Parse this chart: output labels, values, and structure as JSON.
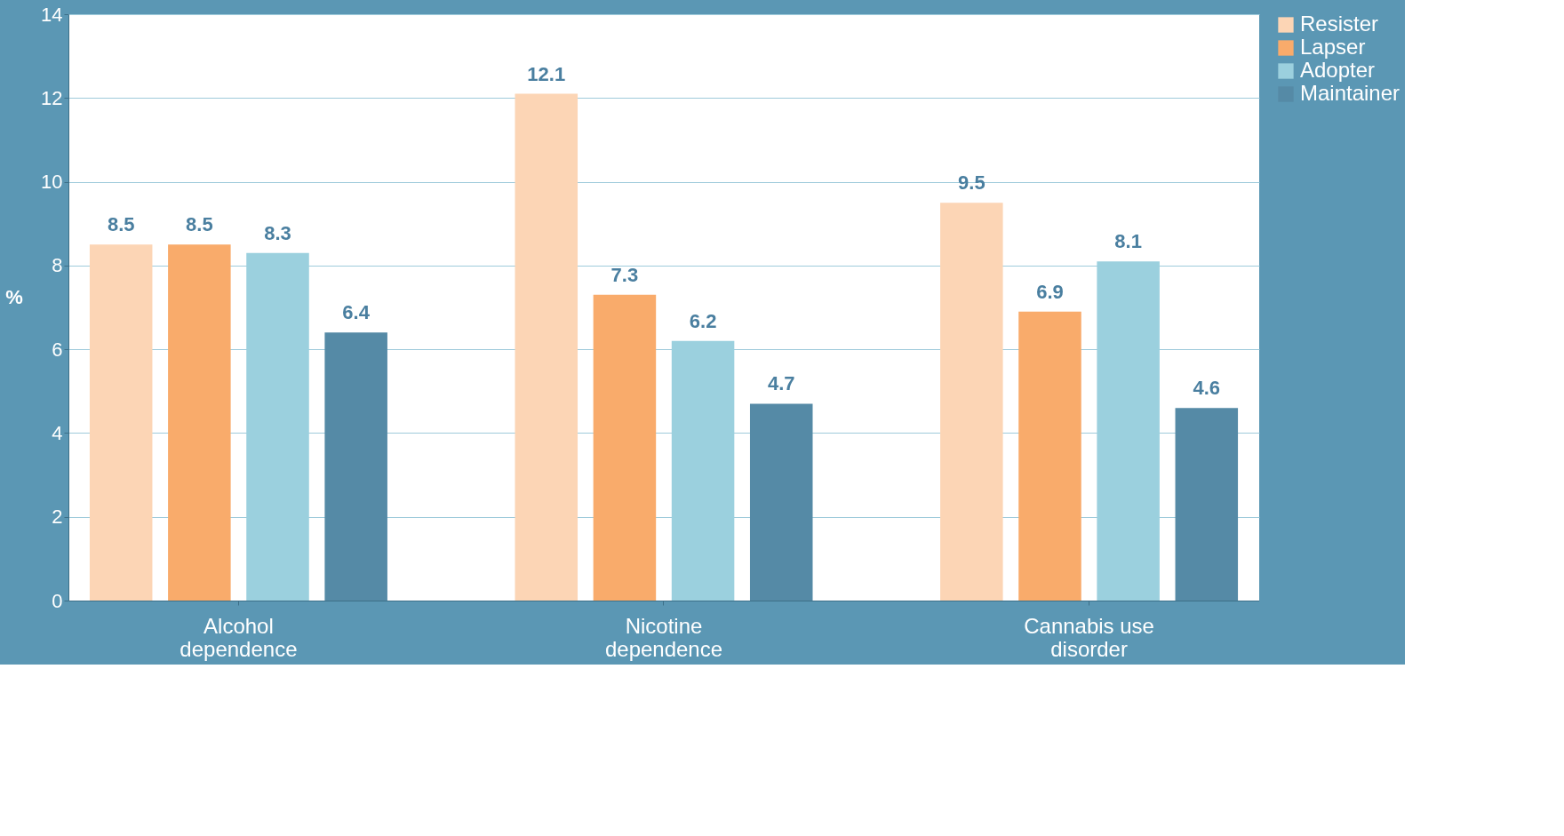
{
  "chart_data": {
    "type": "bar",
    "ylabel": "%",
    "categories": [
      "Alcohol dependence",
      "Nicotine dependence",
      "Cannabis use disorder"
    ],
    "series": [
      {
        "name": "Resister",
        "color": "#fcd5b5",
        "values": [
          8.5,
          12.1,
          9.5
        ]
      },
      {
        "name": "Lapser",
        "color": "#f9ab6b",
        "values": [
          8.5,
          7.3,
          6.9
        ]
      },
      {
        "name": "Adopter",
        "color": "#9bd0de",
        "values": [
          8.3,
          6.2,
          8.1
        ]
      },
      {
        "name": "Maintainer",
        "color": "#558aa6",
        "values": [
          6.4,
          4.7,
          4.6
        ]
      }
    ],
    "ylim": [
      0,
      14
    ],
    "yticks": [
      0,
      2,
      4,
      6,
      8,
      10,
      12,
      14
    ],
    "grid": "y",
    "legend": "right",
    "data_labels": true
  }
}
